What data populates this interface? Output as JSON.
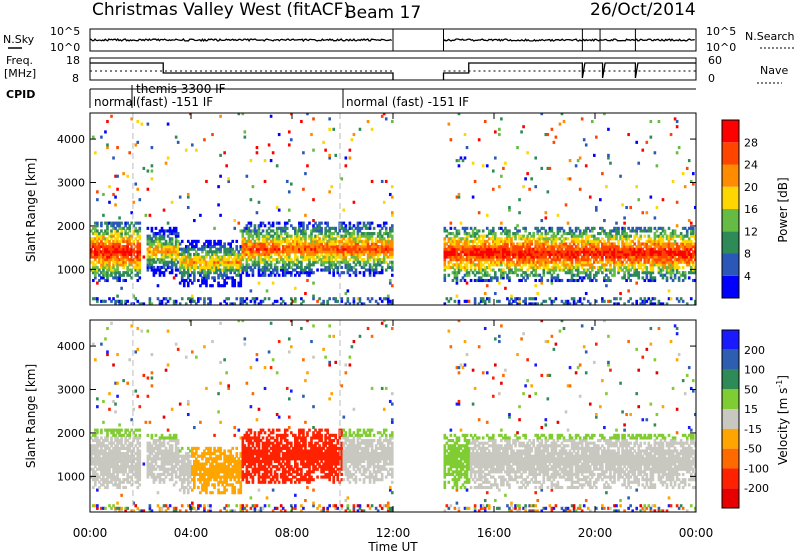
{
  "header": {
    "station": "Christmas Valley West (fitACF)",
    "beam": "Beam 17",
    "date": "26/Oct/2014"
  },
  "strip_labels": {
    "nsky": "N.Sky",
    "nsky_ticks": [
      "10^5",
      "10^0"
    ],
    "nsearch": "N.Search",
    "freq_line1": "Freq.",
    "freq_line2": "[MHz]",
    "freq_ticks": [
      "18",
      "8"
    ],
    "nave": "Nave",
    "nave_ticks": [
      "60",
      "0"
    ],
    "cpid": "CPID"
  },
  "cpid_segments": [
    {
      "label": "normal",
      "start_h": 0.0,
      "end_h": 1.7
    },
    {
      "label": "themis 3300 IF",
      "start_h": 1.7,
      "end_h": 3.5,
      "line": 1
    },
    {
      "label": "(fast) -151 IF",
      "start_h": 1.7,
      "end_h": 3.5,
      "line": 2
    },
    {
      "label": "normal (fast) -151 IF",
      "start_h": 9.9,
      "end_h": 24.0
    }
  ],
  "axes": {
    "xlabel": "Time UT",
    "xticks": [
      "00:00",
      "04:00",
      "08:00",
      "12:00",
      "16:00",
      "20:00",
      "00:00"
    ],
    "xlim_hours": [
      0,
      24
    ],
    "ylabel": "Slant Range [km]",
    "yticks": [
      "1000",
      "2000",
      "3000",
      "4000"
    ],
    "ylim_km": [
      180,
      4600
    ]
  },
  "power_scale": {
    "title": "Power [dB]",
    "ticks": [
      "4",
      "8",
      "12",
      "16",
      "20",
      "24",
      "28"
    ],
    "colors": [
      "#0000ff",
      "#2b58b8",
      "#2e8b57",
      "#66bb44",
      "#ffd700",
      "#ff8c00",
      "#ff4500",
      "#ff0000"
    ]
  },
  "velocity_scale": {
    "title": "Velocity [m s",
    "title_sup": "-1",
    "title_end": "]",
    "ticks": [
      "200",
      "100",
      "50",
      "15",
      "-15",
      "-50",
      "-100",
      "-200"
    ],
    "colors": [
      "#1a1aff",
      "#2e5eb0",
      "#2e8b57",
      "#80cc33",
      "#c8c8c0",
      "#ffa500",
      "#ff6a00",
      "#ff2200",
      "#e80000"
    ]
  },
  "chart_data": {
    "type": "heatmap",
    "description_x": "hours UT",
    "data_gap_hours": [
      12.0,
      14.0
    ],
    "power_echo_bands": [
      {
        "start_h": 0.0,
        "end_h": 2.0,
        "range_low_km": 900,
        "range_high_km": 1900,
        "level": "high"
      },
      {
        "start_h": 2.2,
        "end_h": 3.5,
        "range_low_km": 1000,
        "range_high_km": 1800,
        "level": "mid"
      },
      {
        "start_h": 3.5,
        "end_h": 6.0,
        "range_low_km": 800,
        "range_high_km": 1500,
        "level": "mid"
      },
      {
        "start_h": 6.0,
        "end_h": 12.0,
        "range_low_km": 1000,
        "range_high_km": 1900,
        "level": "mid-high"
      },
      {
        "start_h": 14.0,
        "end_h": 24.0,
        "range_low_km": 900,
        "range_high_km": 1800,
        "level": "high"
      }
    ]
  }
}
